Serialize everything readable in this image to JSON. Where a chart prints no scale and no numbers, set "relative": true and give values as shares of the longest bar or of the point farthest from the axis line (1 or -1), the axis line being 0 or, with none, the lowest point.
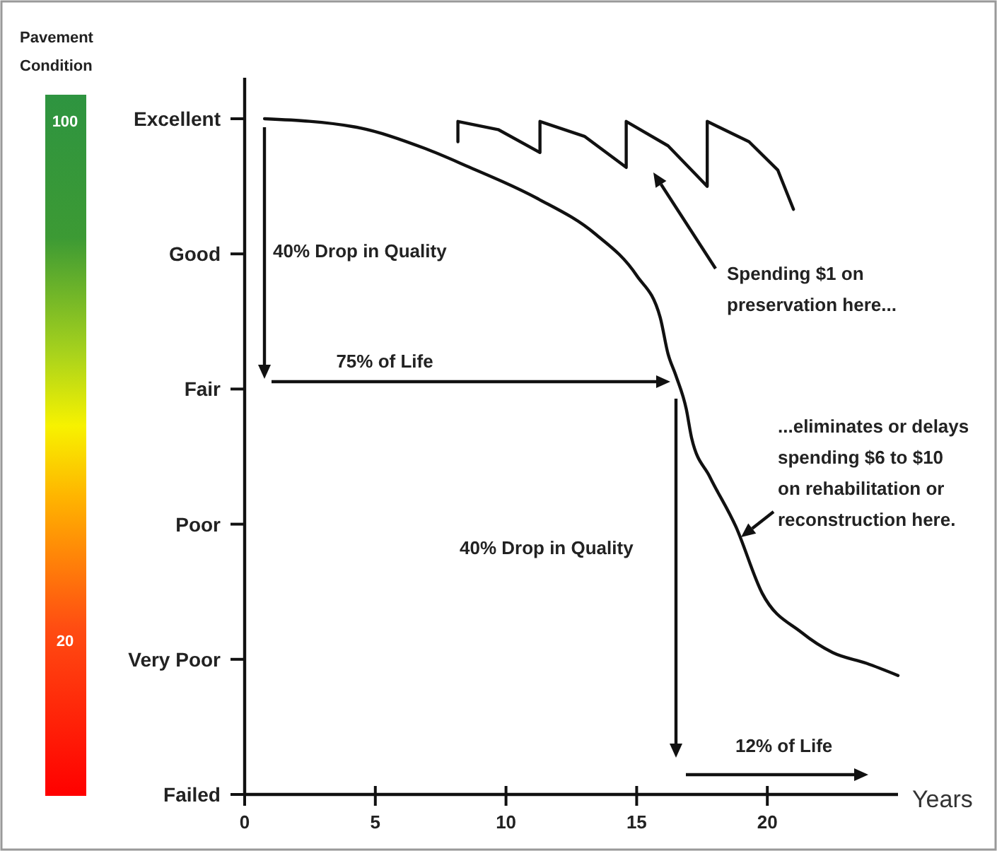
{
  "chart_data": {
    "type": "line",
    "xlabel": "Years",
    "clabel": "Pavement Condition",
    "clim": [
      -4,
      104
    ],
    "cticks": [
      100,
      20
    ],
    "xlim": [
      0,
      25
    ],
    "xticks": [
      0,
      5,
      10,
      15,
      20
    ],
    "relative": true,
    "y_categories": [
      "Excellent",
      "Good",
      "Fair",
      "Poor",
      "Very Poor",
      "Failed"
    ],
    "grid": false,
    "marker": "none",
    "line_style": "solid",
    "series": [
      {
        "color": "#111111",
        "x": [
          0.76,
          4.2,
          6.9,
          8.5,
          11.2,
          13.4,
          15.0,
          15.9,
          16.2,
          16.5,
          16.9,
          17.1,
          17.8,
          18.8,
          19.8,
          21.3,
          22.5,
          23.8,
          25
        ],
        "values": [
          1.0,
          0.988,
          0.956,
          0.93,
          0.882,
          0.83,
          0.768,
          0.706,
          0.652,
          0.62,
          0.57,
          0.528,
          0.47,
          0.396,
          0.298,
          0.24,
          0.21,
          0.194,
          0.176
        ]
      },
      {
        "color": "#111111",
        "x": [
          8.16,
          8.16,
          9.7,
          11.3,
          11.3,
          13.0,
          14.6,
          14.6,
          16.2,
          17.7,
          17.7,
          19.3,
          20.4,
          21.0
        ],
        "values": [
          0.966,
          0.996,
          0.984,
          0.95,
          0.996,
          0.974,
          0.928,
          0.996,
          0.96,
          0.9,
          0.996,
          0.966,
          0.924,
          0.866
        ]
      }
    ],
    "annotations": [
      "40% Drop in Quality",
      "75% of Life",
      "Spending $1 on\npreservation here...",
      "...eliminates or delays\nspending $6 to $10\non rehabilitation or\nreconstruction here.",
      "40% Drop in Quality",
      "12% of Life"
    ]
  }
}
